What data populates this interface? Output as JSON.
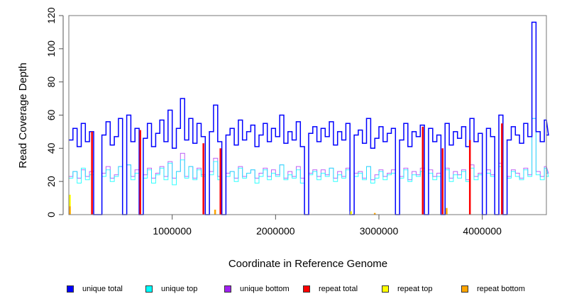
{
  "chart_data": {
    "type": "line",
    "title": "",
    "xlabel": "Coordinate in Reference Genome",
    "ylabel": "Read Coverage Depth",
    "xlim": [
      0,
      4620000
    ],
    "ylim": [
      0,
      120
    ],
    "x_ticks": [
      1000000,
      2000000,
      3000000,
      4000000
    ],
    "x_tick_labels": [
      "1000000",
      "2000000",
      "3000000",
      "4000000"
    ],
    "y_ticks": [
      0,
      20,
      40,
      60,
      80,
      100,
      120
    ],
    "y_tick_labels": [
      "0",
      "20",
      "40",
      "60",
      "80",
      "100",
      "120"
    ],
    "legend_position": "bottom",
    "x_start": 0,
    "x_step": 40000,
    "series": [
      {
        "name": "unique total",
        "color": "#0000ff",
        "values": [
          45,
          52,
          41,
          55,
          44,
          50,
          0,
          0,
          48,
          56,
          42,
          47,
          58,
          0,
          60,
          44,
          52,
          0,
          46,
          55,
          41,
          49,
          57,
          44,
          63,
          40,
          52,
          70,
          45,
          58,
          43,
          55,
          47,
          0,
          50,
          66,
          44,
          0,
          48,
          52,
          42,
          57,
          45,
          50,
          54,
          41,
          48,
          55,
          44,
          52,
          47,
          60,
          43,
          50,
          45,
          56,
          41,
          0,
          49,
          53,
          44,
          52,
          47,
          56,
          42,
          50,
          45,
          55,
          0,
          48,
          51,
          43,
          58,
          40,
          46,
          53,
          44,
          49,
          52,
          0,
          45,
          55,
          41,
          50,
          47,
          54,
          0,
          52,
          44,
          48,
          0,
          55,
          42,
          50,
          46,
          53,
          41,
          58,
          44,
          49,
          0,
          52,
          47,
          0,
          60,
          0,
          45,
          53,
          48,
          43,
          55,
          47,
          116,
          50,
          44,
          57,
          48
        ]
      },
      {
        "name": "unique top",
        "color": "#00ffff",
        "values": [
          22,
          26,
          19,
          28,
          21,
          24,
          0,
          0,
          23,
          27,
          20,
          23,
          29,
          0,
          30,
          21,
          25,
          0,
          22,
          27,
          19,
          24,
          28,
          21,
          31,
          18,
          26,
          33,
          22,
          29,
          21,
          27,
          23,
          0,
          24,
          32,
          21,
          0,
          23,
          26,
          20,
          28,
          22,
          25,
          27,
          19,
          23,
          27,
          21,
          25,
          23,
          30,
          21,
          24,
          22,
          27,
          19,
          0,
          24,
          26,
          21,
          25,
          23,
          28,
          20,
          24,
          22,
          27,
          0,
          23,
          25,
          21,
          29,
          19,
          22,
          26,
          21,
          24,
          25,
          0,
          22,
          27,
          20,
          24,
          23,
          26,
          0,
          25,
          21,
          23,
          0,
          27,
          20,
          24,
          22,
          26,
          20,
          28,
          21,
          24,
          0,
          25,
          23,
          0,
          29,
          0,
          22,
          26,
          23,
          21,
          27,
          23,
          58,
          24,
          21,
          28,
          23
        ]
      },
      {
        "name": "unique bottom",
        "color": "#a020f0",
        "values": [
          23,
          26,
          22,
          27,
          23,
          26,
          0,
          0,
          25,
          29,
          22,
          24,
          29,
          0,
          30,
          23,
          27,
          0,
          24,
          28,
          22,
          25,
          29,
          23,
          32,
          22,
          26,
          37,
          23,
          29,
          22,
          28,
          24,
          0,
          26,
          34,
          23,
          0,
          25,
          26,
          22,
          29,
          23,
          25,
          27,
          22,
          25,
          28,
          23,
          27,
          24,
          30,
          22,
          26,
          23,
          29,
          22,
          0,
          25,
          27,
          23,
          27,
          24,
          28,
          22,
          26,
          23,
          28,
          0,
          25,
          26,
          22,
          29,
          21,
          24,
          27,
          23,
          25,
          27,
          0,
          23,
          28,
          21,
          26,
          24,
          28,
          0,
          27,
          23,
          25,
          0,
          28,
          22,
          26,
          24,
          27,
          21,
          30,
          23,
          25,
          0,
          27,
          24,
          0,
          31,
          0,
          23,
          27,
          25,
          22,
          28,
          24,
          58,
          26,
          23,
          29,
          25
        ]
      },
      {
        "name": "repeat total",
        "color": "#ff0000",
        "points": [
          [
            224000,
            50
          ],
          [
            691000,
            51
          ],
          [
            1302000,
            43
          ],
          [
            1467000,
            40
          ],
          [
            3424000,
            53
          ],
          [
            3616000,
            40
          ],
          [
            3880000,
            45
          ],
          [
            4190000,
            55
          ]
        ]
      },
      {
        "name": "repeat top",
        "color": "#ffff00",
        "points": [
          [
            10000,
            12
          ],
          [
            2730000,
            2
          ]
        ]
      },
      {
        "name": "repeat bottom",
        "color": "#ffa500",
        "points": [
          [
            10000,
            5
          ],
          [
            1415000,
            3
          ],
          [
            2960000,
            1
          ],
          [
            3655000,
            4
          ]
        ]
      }
    ]
  }
}
